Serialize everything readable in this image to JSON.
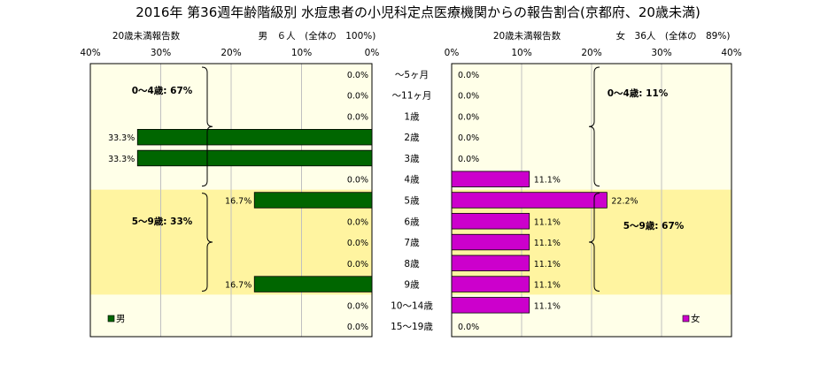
{
  "title": "2016年 第36週年齢階級別 水痘患者の小児科定点医療機関からの報告割合(京都府、20歳未満)",
  "colors": {
    "male_bar": "#006600",
    "female_bar": "#CC00CC",
    "band_light": "#FFFFE8",
    "band_mid": "#FFF4A0",
    "gridline": "#C0C0C0"
  },
  "left_panel": {
    "axis_caption": "20歳未満報告数",
    "header": "男　６人　(全体の　100%)",
    "ticks": [
      "40%",
      "30%",
      "20%",
      "10%",
      "0%"
    ],
    "legend": "男",
    "group_labels": [
      "0～4歳: 67%",
      "5～9歳: 33%"
    ]
  },
  "right_panel": {
    "axis_caption": "20歳未満報告数",
    "header": "女　36人　(全体の　89%)",
    "ticks": [
      "0%",
      "10%",
      "20%",
      "30%",
      "40%"
    ],
    "legend": "女",
    "group_labels": [
      "0～4歳: 11%",
      "5～9歳: 67%"
    ]
  },
  "chart_data": {
    "type": "bar",
    "title": "2016年 第36週年齢階級別 水痘患者の小児科定点医療機関からの報告割合(京都府、20歳未満)",
    "categories": [
      "～5ヶ月",
      "～11ヶ月",
      "1歳",
      "2歳",
      "3歳",
      "4歳",
      "5歳",
      "6歳",
      "7歳",
      "8歳",
      "9歳",
      "10～14歳",
      "15～19歳"
    ],
    "xlim": [
      0,
      40
    ],
    "series": [
      {
        "name": "男",
        "values": [
          0.0,
          0.0,
          0.0,
          33.3,
          33.3,
          0.0,
          16.7,
          0.0,
          0.0,
          0.0,
          16.7,
          0.0,
          0.0
        ],
        "labels": [
          "0.0%",
          "0.0%",
          "0.0%",
          "33.3%",
          "33.3%",
          "0.0%",
          "16.7%",
          "0.0%",
          "0.0%",
          "0.0%",
          "16.7%",
          "0.0%",
          "0.0%"
        ]
      },
      {
        "name": "女",
        "values": [
          0.0,
          0.0,
          0.0,
          0.0,
          0.0,
          11.1,
          22.2,
          11.1,
          11.1,
          11.1,
          11.1,
          11.1,
          0.0
        ],
        "labels": [
          "0.0%",
          "0.0%",
          "0.0%",
          "0.0%",
          "0.0%",
          "11.1%",
          "22.2%",
          "11.1%",
          "11.1%",
          "11.1%",
          "11.1%",
          "11.1%",
          "0.0%"
        ]
      }
    ]
  }
}
